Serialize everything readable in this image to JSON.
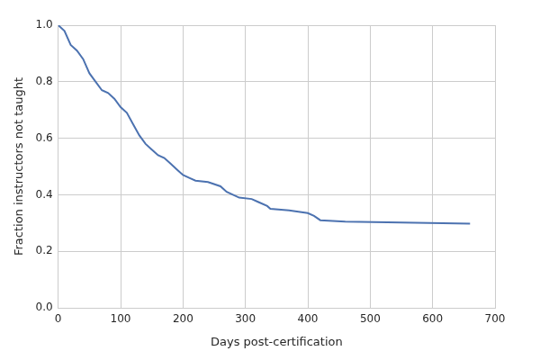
{
  "chart_data": {
    "type": "line",
    "xlabel": "Days post-certification",
    "ylabel": "Fraction instructors not taught",
    "x": [
      0,
      10,
      20,
      30,
      40,
      50,
      60,
      70,
      80,
      90,
      100,
      110,
      120,
      130,
      140,
      150,
      160,
      170,
      180,
      190,
      200,
      210,
      220,
      240,
      260,
      270,
      290,
      310,
      320,
      335,
      340,
      370,
      385,
      400,
      410,
      420,
      460,
      550,
      660
    ],
    "values": [
      1.0,
      0.98,
      0.93,
      0.91,
      0.88,
      0.83,
      0.8,
      0.77,
      0.76,
      0.74,
      0.71,
      0.69,
      0.65,
      0.61,
      0.58,
      0.56,
      0.54,
      0.53,
      0.51,
      0.49,
      0.47,
      0.46,
      0.45,
      0.445,
      0.43,
      0.41,
      0.39,
      0.385,
      0.375,
      0.36,
      0.35,
      0.345,
      0.34,
      0.335,
      0.325,
      0.31,
      0.305,
      0.302,
      0.298
    ],
    "color": "#4c72b0",
    "xlim": [
      0,
      700
    ],
    "xticks": [
      0,
      100,
      200,
      300,
      400,
      500,
      600,
      700
    ],
    "ylim": [
      0,
      1
    ],
    "yticks": [
      {
        "value": 0,
        "label": "0.0"
      },
      0.2,
      0.4,
      0.6,
      0.8,
      {
        "value": 1,
        "label": "1.0"
      }
    ],
    "grid": true
  }
}
